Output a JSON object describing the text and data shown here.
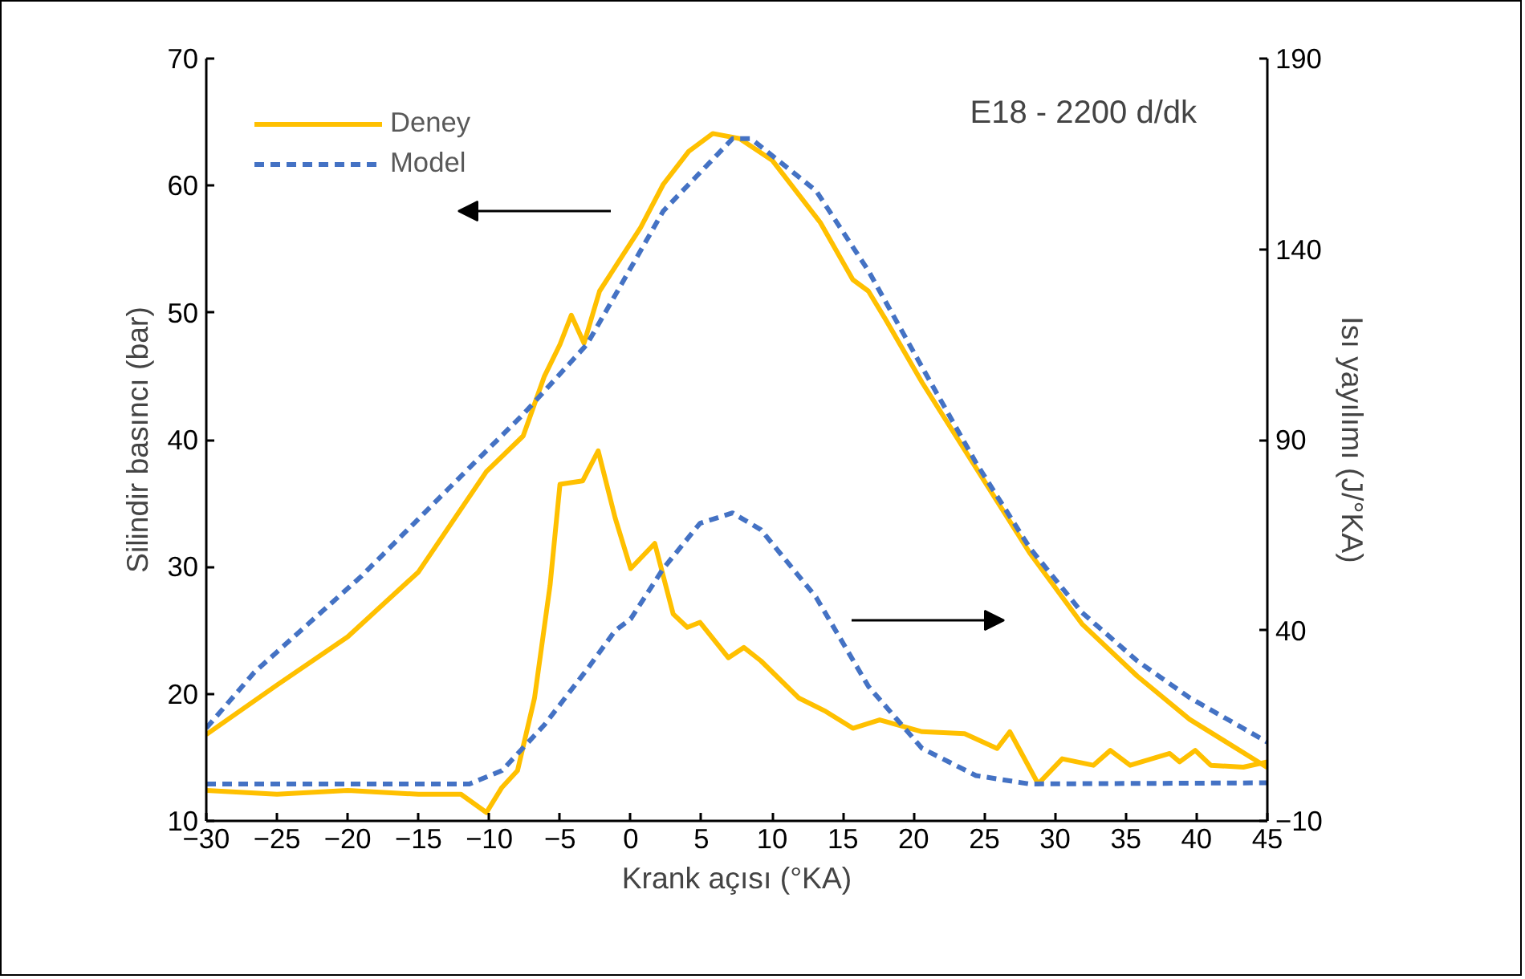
{
  "chart_data": {
    "type": "line",
    "xlabel": "Krank açısı (°KA)",
    "ylabel": "Silindir basıncı (bar)",
    "y2label": "Isı yayılımı (J/°KA)",
    "annotations": [
      "E18 - 2200 d/dk"
    ],
    "xlim": [
      -30,
      45
    ],
    "xticks": [
      -30,
      -25,
      -20,
      -15,
      -10,
      -5,
      0,
      5,
      10,
      15,
      20,
      25,
      30,
      35,
      40,
      45
    ],
    "ylim": [
      10,
      70
    ],
    "yticks": [
      10,
      20,
      30,
      40,
      50,
      60,
      70
    ],
    "y2lim": [
      -10,
      190
    ],
    "y2ticks": [
      -10,
      40,
      90,
      140,
      190
    ],
    "grid": false,
    "legend": "top left",
    "series": [
      {
        "name": "Deney",
        "color": "#ffc000",
        "line_style": "solid",
        "x": [
          -30,
          -25,
          -20,
          -15,
          -10.2,
          -7.6,
          -6.1,
          -5,
          -4.2,
          -3.3,
          -2.2,
          0.7,
          2.3,
          4.1,
          5.8,
          7.7,
          10,
          13.4,
          15.7,
          16.8,
          18,
          20.6,
          24.4,
          28.2,
          31.9,
          35.8,
          39.5,
          45
        ],
        "values": [
          16.8,
          20.7,
          24.5,
          29.6,
          37.5,
          40.3,
          45,
          47.5,
          49.8,
          47.6,
          51.7,
          56.7,
          60.1,
          62.7,
          64.1,
          63.7,
          62,
          57.1,
          52.6,
          51.7,
          49.5,
          44.5,
          37.8,
          31.1,
          25.5,
          21.4,
          18,
          14.2
        ]
      },
      {
        "name": "Model",
        "color": "#4472c4",
        "line_style": "dashed",
        "x": [
          -30,
          -26.6,
          -19,
          -11.4,
          -7.6,
          -3.1,
          -1.6,
          2.3,
          7.2,
          8.5,
          13.1,
          16.8,
          20.6,
          24.4,
          28.2,
          31.9,
          35.8,
          39.5,
          45
        ],
        "values": [
          17.3,
          21.7,
          29.3,
          37.8,
          42,
          47.5,
          50.4,
          58,
          63.7,
          63.7,
          59.6,
          53.3,
          45.7,
          38.2,
          31.5,
          26.4,
          22.6,
          19.7,
          16.2
        ]
      },
      {
        "color": "#ffc000",
        "line_style": "solid",
        "axis": "y2",
        "x": [
          -30,
          -25,
          -20,
          -15,
          -12,
          -10.2,
          -9.1,
          -8,
          -6.8,
          -5.7,
          -5,
          -3.4,
          -2.3,
          -1.1,
          0,
          1.7,
          3,
          4,
          4.9,
          6.9,
          8,
          9.2,
          11.9,
          13.8,
          15.7,
          17.6,
          20.6,
          23.6,
          25.9,
          26.8,
          28.8,
          30.5,
          32.7,
          33.9,
          35.3,
          38.1,
          38.8,
          39.9,
          41,
          43.3,
          45
        ],
        "values": [
          -2,
          -3,
          -2,
          -3,
          -3,
          -7.8,
          -1.2,
          3.2,
          22.2,
          51.8,
          78.3,
          79.2,
          87.1,
          69.5,
          56.2,
          62.8,
          44.3,
          40.8,
          42.1,
          32.8,
          35.5,
          32,
          22.2,
          18.7,
          14.3,
          16.5,
          13.4,
          12.9,
          9,
          13.4,
          -0.3,
          6.3,
          4.6,
          8.5,
          4.6,
          7.7,
          5.5,
          8.5,
          4.6,
          4.1,
          5.5
        ]
      },
      {
        "color": "#4472c4",
        "line_style": "dashed",
        "axis": "y2",
        "x": [
          -30,
          -11.4,
          -9.1,
          -6.1,
          -3.1,
          -1.1,
          0,
          2.3,
          4.9,
          7.2,
          9.2,
          13.1,
          16.8,
          20.6,
          24.4,
          28.2,
          45
        ],
        "values": [
          -0.3,
          -0.3,
          3.2,
          15.2,
          29.7,
          39.9,
          43,
          56.2,
          68.1,
          70.8,
          66.4,
          48.7,
          25.3,
          9,
          1.9,
          -0.3,
          0
        ]
      }
    ]
  }
}
